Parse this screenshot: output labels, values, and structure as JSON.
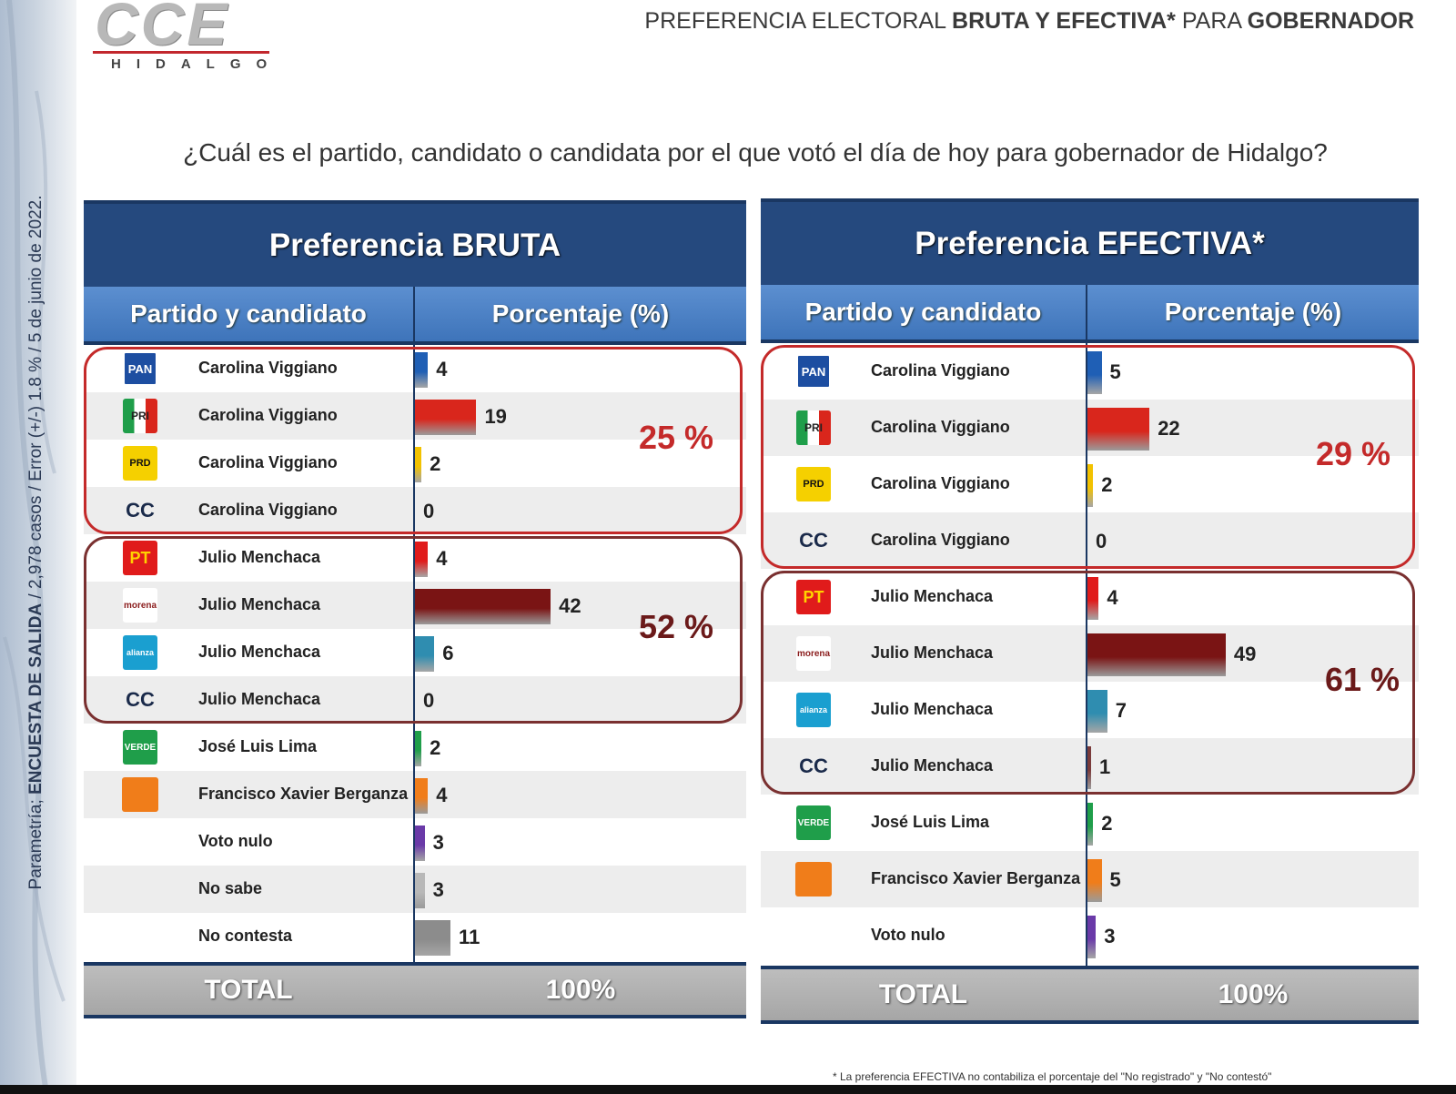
{
  "logo": {
    "brand": "CCE",
    "region": "HIDALGO"
  },
  "slide_title": {
    "part1": "PREFERENCIA ELECTORAL ",
    "part2": "BRUTA Y EFECTIVA*",
    "part3": " PARA ",
    "part4": "GOBERNADOR"
  },
  "side_caption": {
    "part1": "Parametría; ",
    "part2": "ENCUESTA DE SALIDA",
    "part3": " / 2,978 casos / Error (+/-) 1.8 % / 5 de junio de 2022."
  },
  "question": "¿Cuál es el partido, candidato o candidata por el que votó el día de hoy para gobernador de Hidalgo?",
  "footnote": "* La preferencia EFECTIVA no contabiliza el porcentaje del \"No registrado\" y \"No contestó\"",
  "party_logos": {
    "PAN": {
      "text": "PAN",
      "icon": "pan-logo-icon"
    },
    "PRI": {
      "text": "PRI",
      "icon": "pri-logo-icon"
    },
    "PRD": {
      "text": "PRD",
      "icon": "prd-logo-icon"
    },
    "PT": {
      "text": "PT",
      "icon": "pt-logo-icon"
    },
    "MORENA": {
      "text": "morena",
      "icon": "morena-logo-icon"
    },
    "NA": {
      "text": "alianza",
      "icon": "nueva-alianza-logo-icon"
    },
    "VERDE": {
      "text": "VERDE",
      "icon": "verde-logo-icon"
    },
    "MC": {
      "text": "",
      "icon": "movimiento-ciudadano-logo-icon"
    },
    "CC": {
      "text": "CC",
      "icon": "cc-label"
    }
  },
  "colors": {
    "header_dark": "#25497e",
    "header_light": "#4a80c4",
    "group1_border": "#c42a2a",
    "group2_border": "#7a3030",
    "group1_pct": "#c42a2a",
    "group2_pct": "#6b1a1a"
  },
  "chart_data": [
    {
      "type": "bar",
      "title": "Preferencia BRUTA",
      "col_party": "Partido y candidato",
      "col_pct": "Porcentaje (%)",
      "total_label": "TOTAL",
      "total_value": "100%",
      "rows": [
        {
          "party": "PAN",
          "candidate": "Carolina Viggiano",
          "value": 4,
          "color": "#1f5fb5"
        },
        {
          "party": "PRI",
          "candidate": "Carolina Viggiano",
          "value": 19,
          "color": "#d9261c"
        },
        {
          "party": "PRD",
          "candidate": "Carolina Viggiano",
          "value": 2,
          "color": "#f2c200"
        },
        {
          "party": "CC",
          "candidate": "Carolina Viggiano",
          "value": 0,
          "color": "#555555"
        },
        {
          "party": "PT",
          "candidate": "Julio Menchaca",
          "value": 4,
          "color": "#e01b1b"
        },
        {
          "party": "MORENA",
          "candidate": "Julio Menchaca",
          "value": 42,
          "color": "#7a1414"
        },
        {
          "party": "NA",
          "candidate": "Julio Menchaca",
          "value": 6,
          "color": "#2f8db0"
        },
        {
          "party": "CC",
          "candidate": "Julio Menchaca",
          "value": 0,
          "color": "#555555"
        },
        {
          "party": "VERDE",
          "candidate": "José Luis Lima",
          "value": 2,
          "color": "#1f9e4a"
        },
        {
          "party": "MC",
          "candidate": "Francisco Xavier Berganza",
          "value": 4,
          "color": "#f07d1a"
        },
        {
          "party": "",
          "candidate": "Voto nulo",
          "value": 3,
          "color": "#6a3aa8"
        },
        {
          "party": "",
          "candidate": "No sabe",
          "value": 3,
          "color": "#b8b8b8"
        },
        {
          "party": "",
          "candidate": "No contesta",
          "value": 11,
          "color": "#8c8c8c"
        }
      ],
      "groups": [
        {
          "from": 0,
          "to": 3,
          "label": "25 %"
        },
        {
          "from": 4,
          "to": 7,
          "label": "52 %"
        }
      ]
    },
    {
      "type": "bar",
      "title": "Preferencia EFECTIVA*",
      "col_party": "Partido y candidato",
      "col_pct": "Porcentaje (%)",
      "total_label": "TOTAL",
      "total_value": "100%",
      "rows": [
        {
          "party": "PAN",
          "candidate": "Carolina Viggiano",
          "value": 5,
          "color": "#1f5fb5"
        },
        {
          "party": "PRI",
          "candidate": "Carolina Viggiano",
          "value": 22,
          "color": "#d9261c"
        },
        {
          "party": "PRD",
          "candidate": "Carolina Viggiano",
          "value": 2,
          "color": "#f2c200"
        },
        {
          "party": "CC",
          "candidate": "Carolina Viggiano",
          "value": 0,
          "color": "#555555"
        },
        {
          "party": "PT",
          "candidate": "Julio Menchaca",
          "value": 4,
          "color": "#e01b1b"
        },
        {
          "party": "MORENA",
          "candidate": "Julio Menchaca",
          "value": 49,
          "color": "#7a1414"
        },
        {
          "party": "NA",
          "candidate": "Julio Menchaca",
          "value": 7,
          "color": "#2f8db0"
        },
        {
          "party": "CC",
          "candidate": "Julio Menchaca",
          "value": 1,
          "color": "#7a3a3a"
        },
        {
          "party": "VERDE",
          "candidate": "José Luis Lima",
          "value": 2,
          "color": "#1f9e4a"
        },
        {
          "party": "MC",
          "candidate": "Francisco Xavier Berganza",
          "value": 5,
          "color": "#f07d1a"
        },
        {
          "party": "",
          "candidate": "Voto nulo",
          "value": 3,
          "color": "#6a3aa8"
        }
      ],
      "groups": [
        {
          "from": 0,
          "to": 3,
          "label": "29 %"
        },
        {
          "from": 4,
          "to": 7,
          "label": "61 %"
        }
      ]
    }
  ]
}
